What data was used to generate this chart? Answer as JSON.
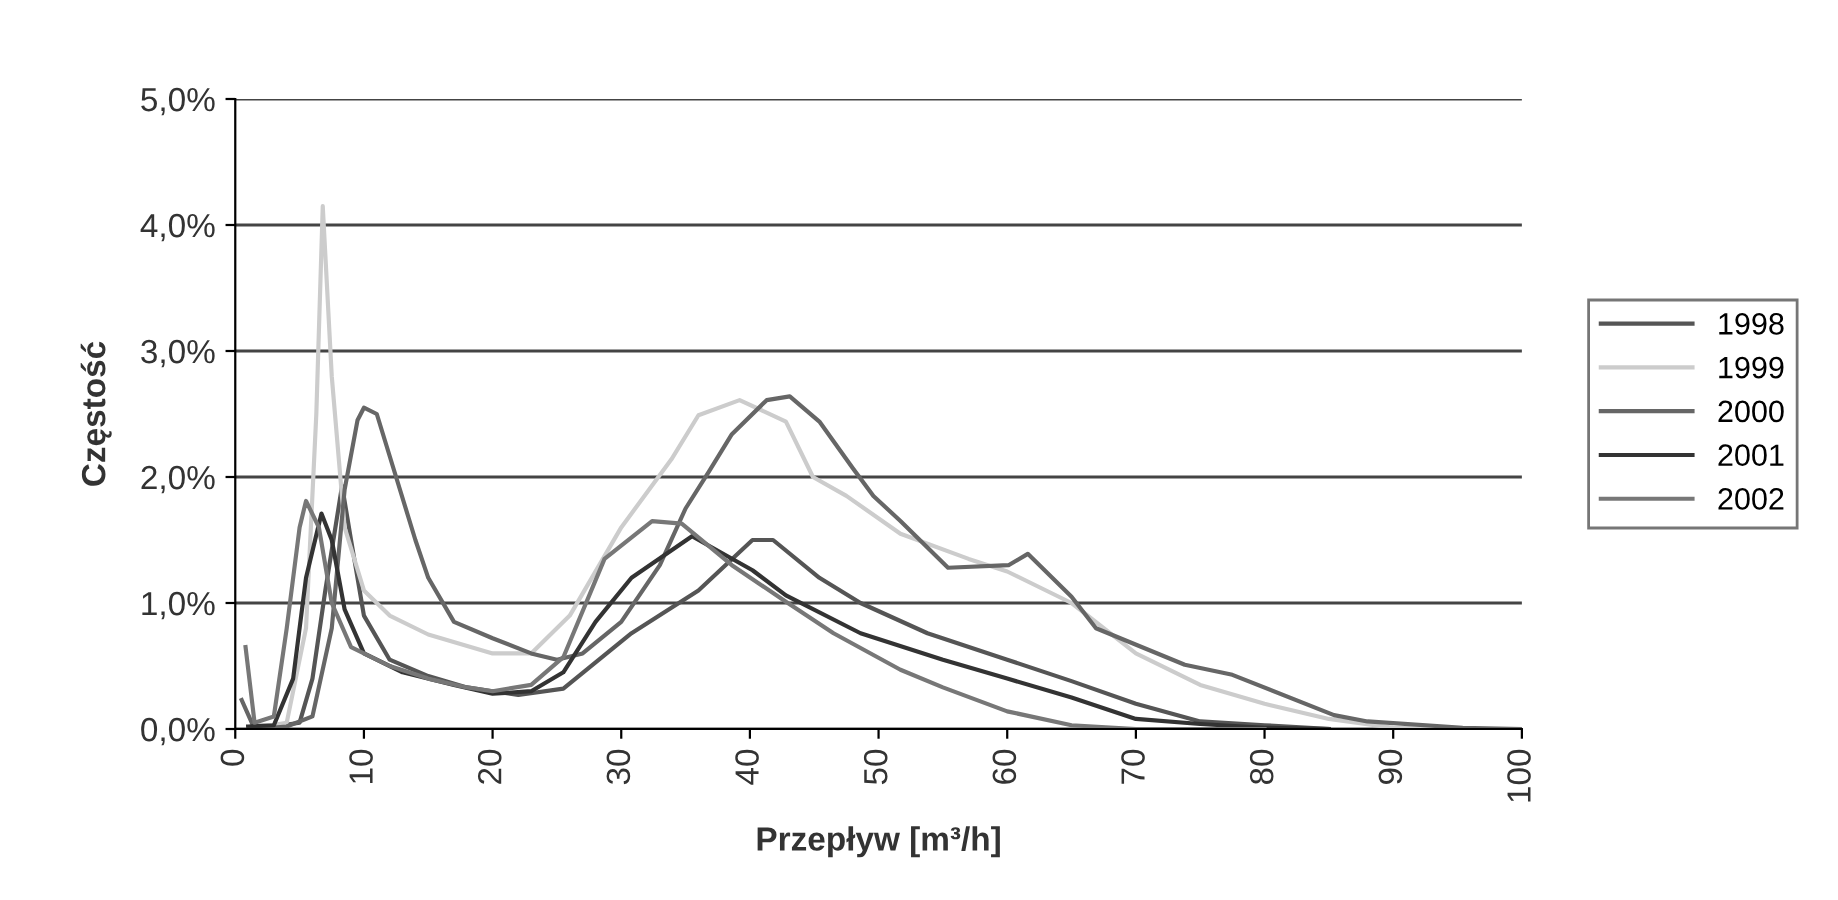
{
  "chart_data": {
    "type": "line",
    "xlabel": "Przepływ [m³/h]",
    "ylabel": "Częstość",
    "xlim": [
      0,
      100
    ],
    "xticks": [
      0,
      10,
      20,
      30,
      40,
      50,
      60,
      70,
      80,
      90,
      100
    ],
    "ylim": [
      0,
      5
    ],
    "yticks": [
      {
        "value": 0,
        "label": "0,0%"
      },
      {
        "value": 1,
        "label": "1,0%"
      },
      {
        "value": 2,
        "label": "2,0%"
      },
      {
        "value": 3,
        "label": "3,0%"
      },
      {
        "value": 4,
        "label": "4,0%"
      },
      {
        "value": 5,
        "label": "5,0%"
      }
    ],
    "grid": "y",
    "legend": "right",
    "marker": "none",
    "line_style": "solid",
    "series": [
      {
        "name": "1998",
        "color": "#555555",
        "x": [
          1,
          3,
          5,
          6,
          7,
          8.3,
          9,
          10,
          12,
          15,
          18,
          20,
          22,
          25.5,
          30.8,
          36,
          40.2,
          41.8,
          45.4,
          48.6,
          53.8,
          60,
          65,
          70,
          75,
          80,
          85
        ],
        "values": [
          0,
          0.02,
          0.05,
          0.4,
          1.1,
          1.93,
          1.5,
          0.9,
          0.55,
          0.42,
          0.33,
          0.3,
          0.27,
          0.32,
          0.76,
          1.1,
          1.5,
          1.5,
          1.2,
          1.0,
          0.76,
          0.55,
          0.38,
          0.2,
          0.06,
          0.03,
          0
        ]
      },
      {
        "name": "1999",
        "color": "#cccccc",
        "x": [
          1,
          4,
          5.5,
          6.3,
          6.8,
          7.5,
          8.5,
          10,
          12,
          15,
          20,
          23,
          26,
          30,
          33.9,
          36,
          39.2,
          42.8,
          44.9,
          47.5,
          51.7,
          57,
          60,
          65,
          70,
          75,
          80,
          85,
          90,
          95
        ],
        "values": [
          0,
          0.05,
          0.8,
          2.5,
          4.15,
          2.8,
          1.6,
          1.1,
          0.9,
          0.75,
          0.6,
          0.6,
          0.9,
          1.6,
          2.14,
          2.49,
          2.61,
          2.44,
          2.0,
          1.85,
          1.55,
          1.35,
          1.25,
          1.0,
          0.6,
          0.35,
          0.2,
          0.08,
          0.01,
          0
        ]
      },
      {
        "name": "2000",
        "color": "#666666",
        "x": [
          0.5,
          1.5,
          4,
          6,
          7.5,
          8.5,
          9.5,
          10,
          11,
          12.5,
          14,
          15,
          17,
          20,
          23,
          25,
          27,
          30,
          33,
          35,
          36.8,
          38.6,
          41.3,
          43.1,
          45.4,
          48,
          49.6,
          51.7,
          55.4,
          60.1,
          61.6,
          65,
          66.9,
          73.8,
          77.5,
          85.4,
          88,
          95.4,
          100
        ],
        "values": [
          0.23,
          0,
          0.02,
          0.1,
          0.8,
          1.9,
          2.45,
          2.55,
          2.5,
          2.0,
          1.5,
          1.2,
          0.85,
          0.72,
          0.6,
          0.55,
          0.6,
          0.85,
          1.3,
          1.75,
          2.04,
          2.34,
          2.61,
          2.64,
          2.44,
          2.07,
          1.85,
          1.65,
          1.28,
          1.3,
          1.39,
          1.05,
          0.8,
          0.51,
          0.43,
          0.11,
          0.06,
          0.01,
          0
        ]
      },
      {
        "name": "2001",
        "color": "#333333",
        "x": [
          1,
          3,
          4.5,
          5.5,
          6.7,
          7.5,
          8.5,
          10,
          13,
          17,
          20,
          23,
          25.5,
          28,
          30.8,
          35.5,
          40.2,
          42.8,
          48.6,
          55,
          60,
          65,
          70,
          75,
          80,
          85
        ],
        "values": [
          0.02,
          0.03,
          0.4,
          1.2,
          1.71,
          1.5,
          0.95,
          0.6,
          0.45,
          0.35,
          0.28,
          0.3,
          0.45,
          0.85,
          1.2,
          1.53,
          1.26,
          1.06,
          0.76,
          0.55,
          0.4,
          0.25,
          0.08,
          0.04,
          0.01,
          0
        ]
      },
      {
        "name": "2002",
        "color": "#777777",
        "x": [
          0.8,
          1.5,
          3,
          4,
          5,
          5.5,
          6.5,
          7.5,
          9,
          12,
          15,
          18,
          20,
          23,
          25.5,
          28.7,
          32.4,
          34.7,
          38.6,
          42.8,
          46.5,
          51.7,
          55,
          60,
          65,
          70,
          80
        ],
        "values": [
          0.65,
          0.05,
          0.1,
          0.8,
          1.6,
          1.81,
          1.6,
          1.0,
          0.65,
          0.5,
          0.4,
          0.33,
          0.3,
          0.35,
          0.57,
          1.35,
          1.65,
          1.63,
          1.3,
          1.01,
          0.76,
          0.47,
          0.33,
          0.14,
          0.03,
          0,
          0
        ]
      }
    ]
  }
}
